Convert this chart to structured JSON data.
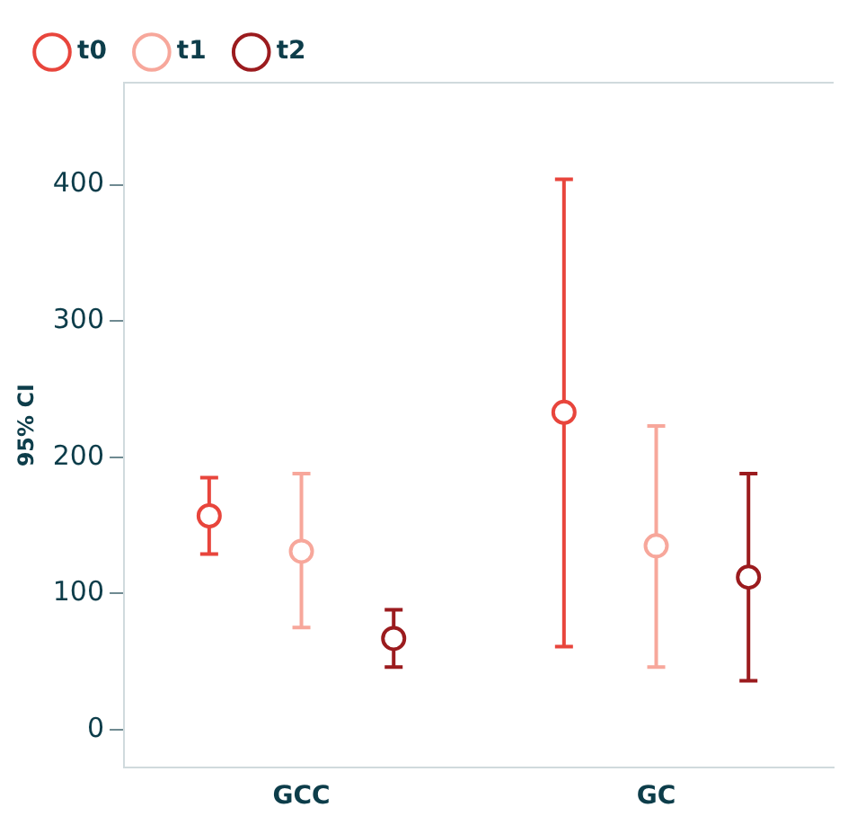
{
  "chart_data": {
    "type": "scatter",
    "ylabel": "95% CI",
    "categories": [
      "GCC",
      "GC"
    ],
    "ylim": [
      -28,
      475
    ],
    "yticks": [
      0,
      100,
      200,
      300,
      400
    ],
    "grid": false,
    "legend": "top left",
    "marker": "circle",
    "series": [
      {
        "name": "t0",
        "color": "#e8453c",
        "values": [
          157,
          233
        ],
        "errors": [
          [
            129,
            185
          ],
          [
            61,
            404
          ]
        ]
      },
      {
        "name": "t1",
        "color": "#f7a79b",
        "values": [
          131,
          135
        ],
        "errors": [
          [
            75,
            188
          ],
          [
            46,
            223
          ]
        ]
      },
      {
        "name": "t2",
        "color": "#9b1b1e",
        "values": [
          67,
          112
        ],
        "errors": [
          [
            46,
            88
          ],
          [
            36,
            188
          ]
        ]
      }
    ]
  }
}
